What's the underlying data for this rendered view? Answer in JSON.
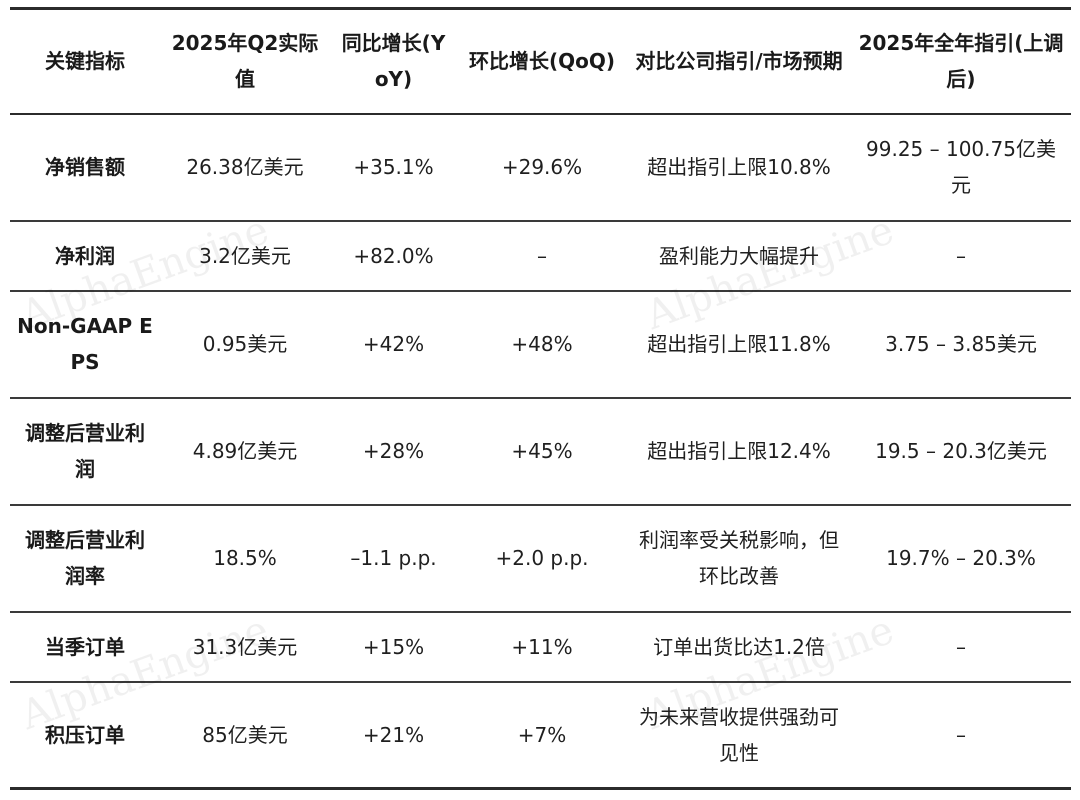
{
  "table": {
    "headers": [
      "关键指标",
      "2025年Q2实际值",
      "同比增长(YoY)",
      "环比增长(QoQ)",
      "对比公司指引/市场预期",
      "2025年全年指引(上调后)"
    ],
    "rows": [
      [
        "净销售额",
        "26.38亿美元",
        "+35.1%",
        "+29.6%",
        "超出指引上限10.8%",
        "99.25 – 100.75亿美元"
      ],
      [
        "净利润",
        "3.2亿美元",
        "+82.0%",
        "–",
        "盈利能力大幅提升",
        "–"
      ],
      [
        "Non-GAAP EPS",
        "0.95美元",
        "+42%",
        "+48%",
        "超出指引上限11.8%",
        "3.75 – 3.85美元"
      ],
      [
        "调整后营业利润",
        "4.89亿美元",
        "+28%",
        "+45%",
        "超出指引上限12.4%",
        "19.5 – 20.3亿美元"
      ],
      [
        "调整后营业利润率",
        "18.5%",
        "–1.1 p.p.",
        "+2.0 p.p.",
        "利润率受关税影响，但环比改善",
        "19.7% – 20.3%"
      ],
      [
        "当季订单",
        "31.3亿美元",
        "+15%",
        "+11%",
        "订单出货比达1.2倍",
        "–"
      ],
      [
        "积压订单",
        "85亿美元",
        "+21%",
        "+7%",
        "为未来营收提供强劲可见性",
        "–"
      ]
    ]
  },
  "watermark": "AlphaEngine"
}
